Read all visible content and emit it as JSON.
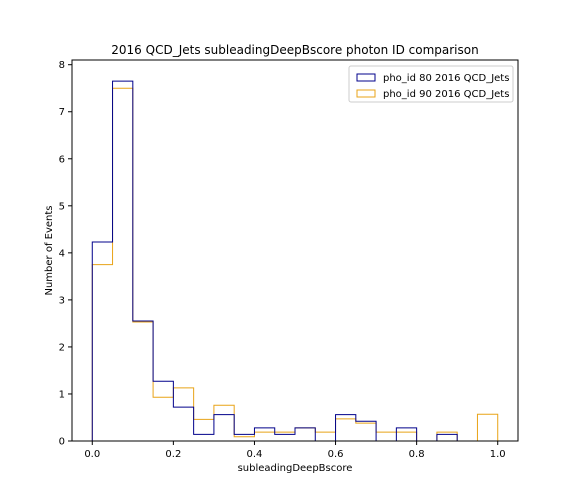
{
  "chart_data": {
    "type": "histogram-step",
    "title": "2016 QCD_Jets subleadingDeepBscore photon ID comparison",
    "xlabel": "subleadingDeepBscore",
    "ylabel": "Number of Events",
    "xlim": [
      -0.05,
      1.05
    ],
    "ylim": [
      0,
      8.1
    ],
    "xticks": [
      0.0,
      0.2,
      0.4,
      0.6,
      0.8,
      1.0
    ],
    "xtick_labels": [
      "0.0",
      "0.2",
      "0.4",
      "0.6",
      "0.8",
      "1.0"
    ],
    "yticks": [
      0,
      1,
      2,
      3,
      4,
      5,
      6,
      7,
      8
    ],
    "ytick_labels": [
      "0",
      "1",
      "2",
      "3",
      "4",
      "5",
      "6",
      "7",
      "8"
    ],
    "grid": false,
    "legend_position": "top-right",
    "bin_edges": [
      0.0,
      0.05,
      0.1,
      0.15,
      0.2,
      0.25,
      0.3,
      0.35,
      0.4,
      0.45,
      0.5,
      0.55,
      0.6,
      0.65,
      0.7,
      0.75,
      0.8,
      0.85,
      0.9,
      0.95,
      1.0
    ],
    "series": [
      {
        "name": "pho_id 80 2016 QCD_Jets",
        "color": "#00008b",
        "values": [
          4.23,
          7.65,
          2.55,
          1.27,
          0.72,
          0.14,
          0.56,
          0.14,
          0.28,
          0.14,
          0.28,
          0.0,
          0.56,
          0.42,
          0.0,
          0.28,
          0.0,
          0.14,
          0.0,
          0.0
        ]
      },
      {
        "name": "pho_id 90 2016 QCD_Jets",
        "color": "#e8a317",
        "values": [
          3.75,
          7.5,
          2.53,
          0.93,
          1.13,
          0.46,
          0.76,
          0.09,
          0.19,
          0.19,
          0.28,
          0.19,
          0.47,
          0.38,
          0.19,
          0.19,
          0.0,
          0.19,
          0.0,
          0.57
        ]
      }
    ]
  }
}
